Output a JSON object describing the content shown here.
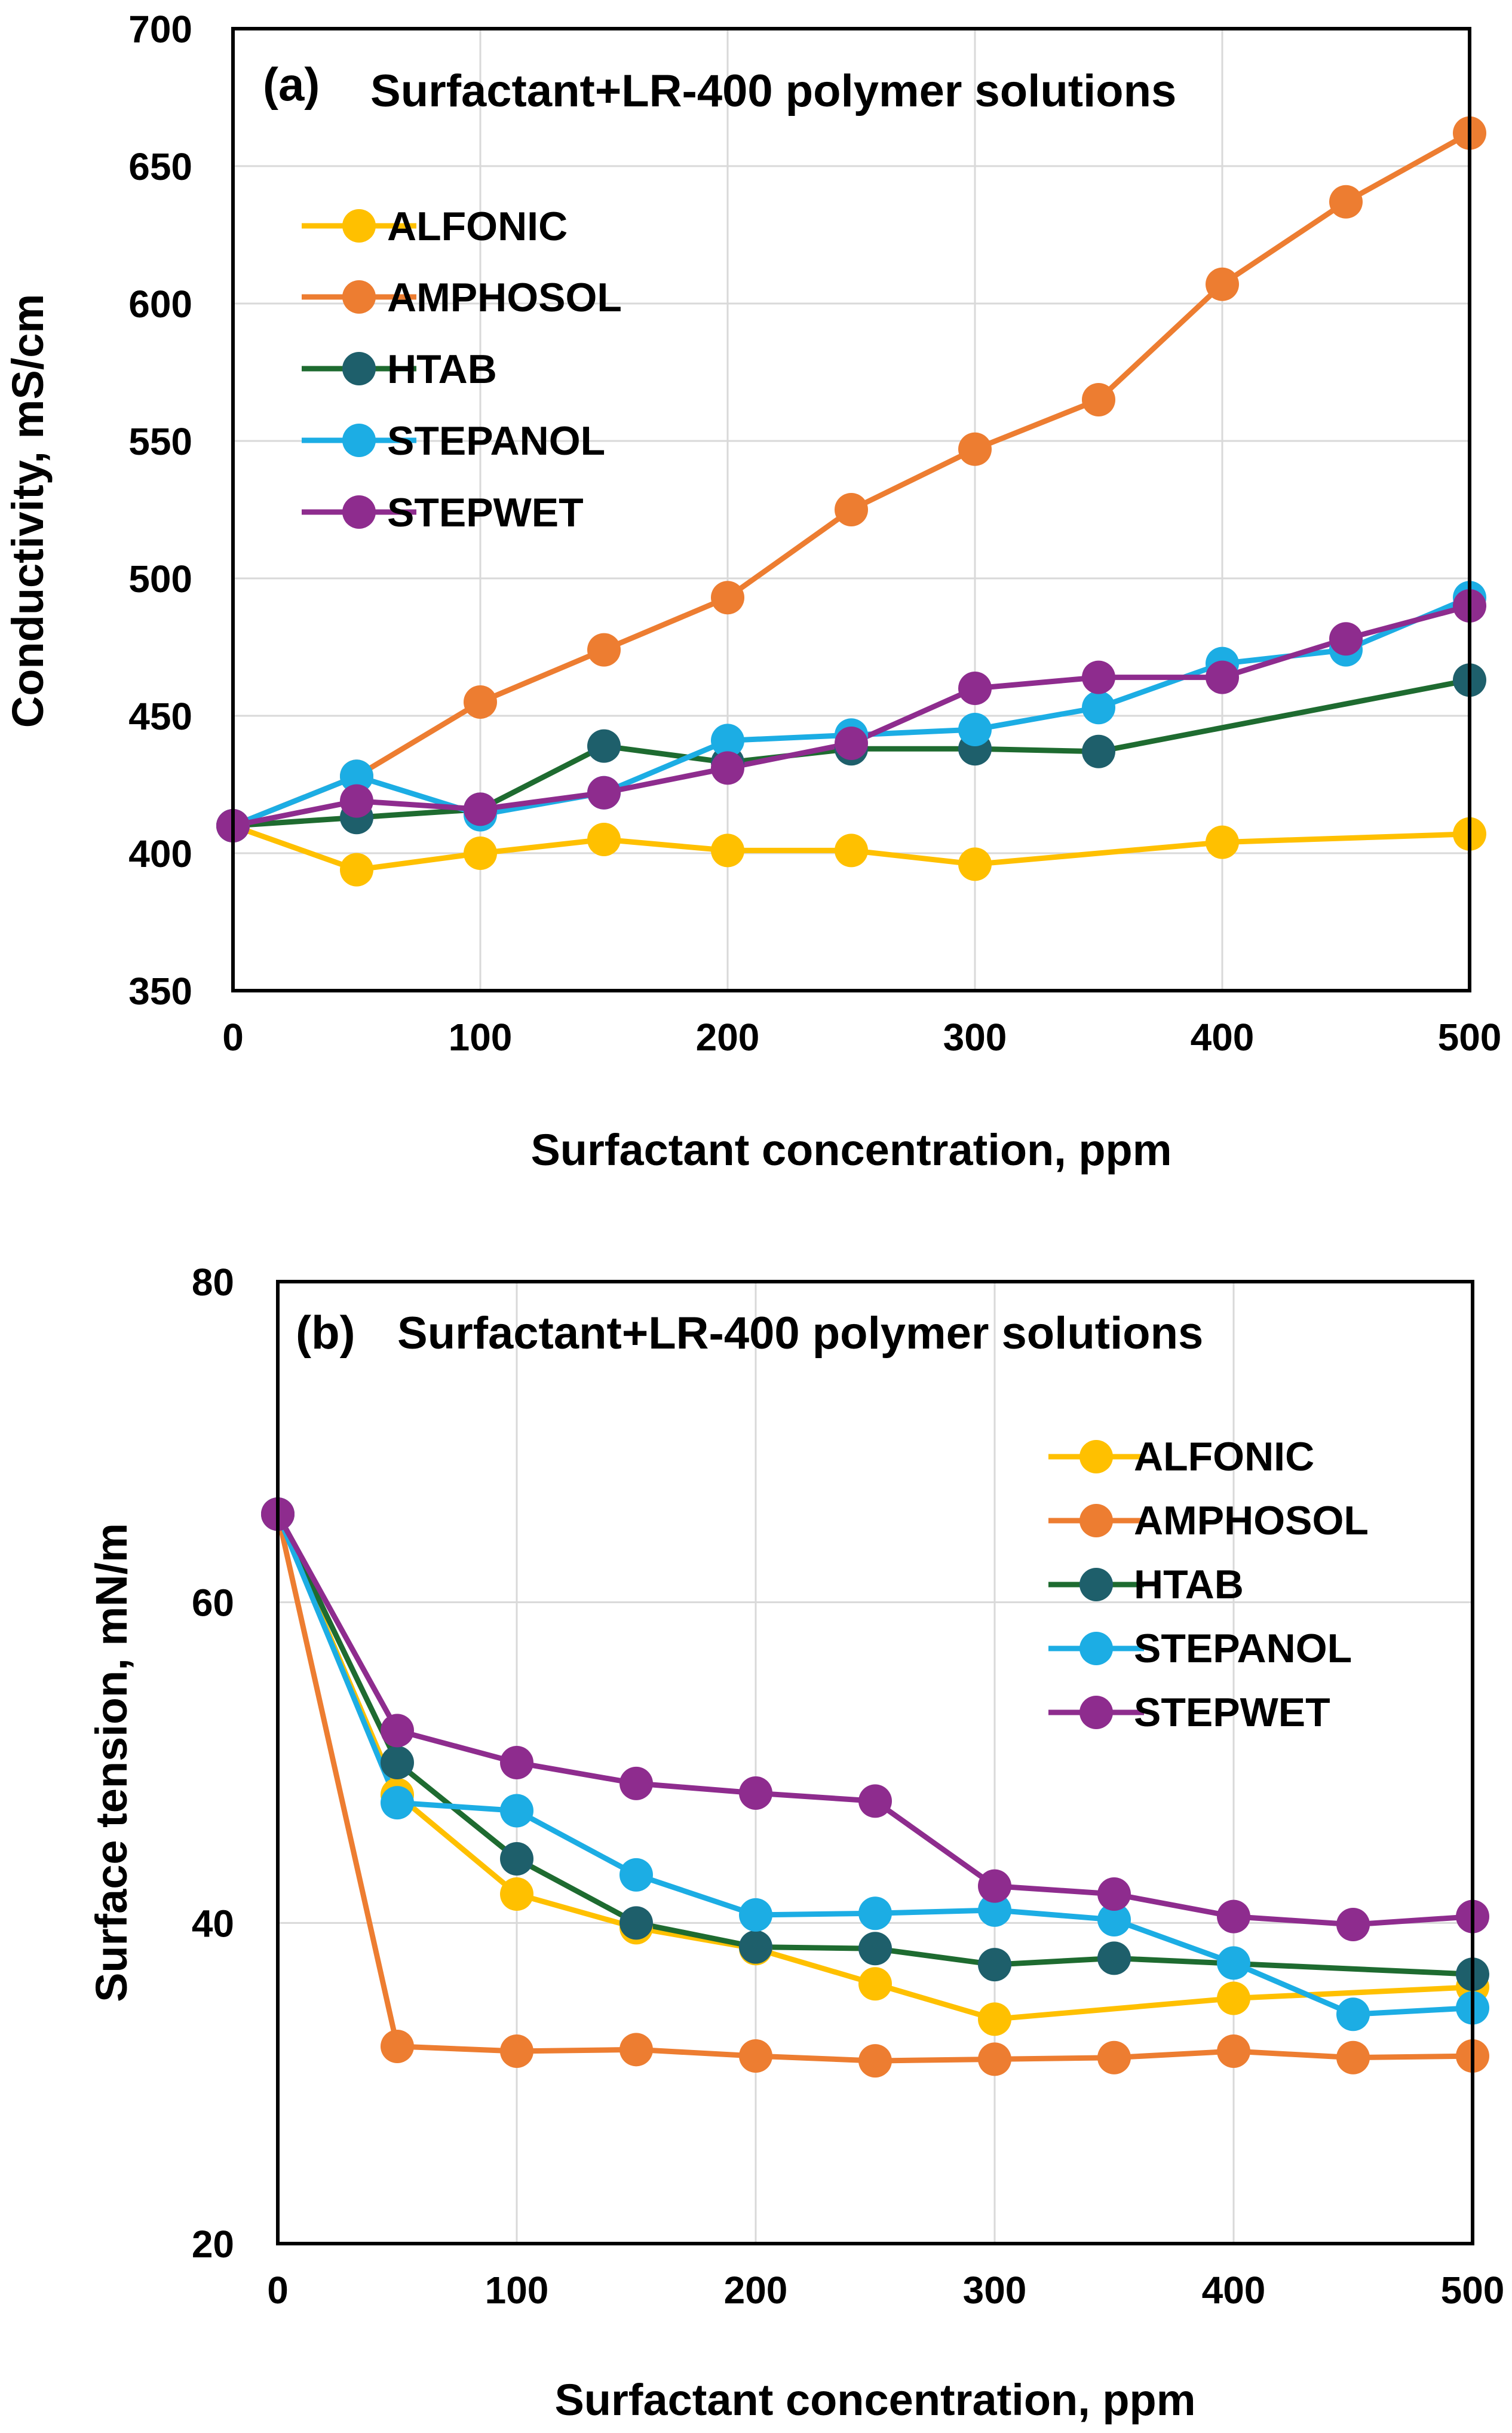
{
  "chart_data": [
    {
      "type": "line",
      "panel_label": "(a)",
      "title": "Surfactant+LR-400 polymer solutions",
      "xlabel": "Surfactant concentration, ppm",
      "ylabel": "Conductivity, mS/cm",
      "xlim": [
        0,
        500
      ],
      "ylim": [
        350,
        700
      ],
      "xticks": [
        "0",
        "100",
        "200",
        "300",
        "400",
        "500"
      ],
      "yticks": [
        "350",
        "400",
        "450",
        "500",
        "550",
        "600",
        "650",
        "700"
      ],
      "grid": true,
      "legend_position": "top-left",
      "series": [
        {
          "name": "ALFONIC",
          "color": "#FFC000",
          "x": [
            0,
            50,
            100,
            150,
            200,
            250,
            300,
            400,
            500
          ],
          "y": [
            410,
            394,
            400,
            405,
            401,
            401,
            396,
            404,
            407
          ]
        },
        {
          "name": "AMPHOSOL",
          "color": "#ED7D31",
          "x": [
            0,
            50,
            100,
            150,
            200,
            250,
            300,
            350,
            400,
            450,
            500
          ],
          "y": [
            410,
            428,
            455,
            474,
            493,
            525,
            547,
            565,
            607,
            637,
            662
          ]
        },
        {
          "name": "HTAB",
          "color": "#1E6B30",
          "x": [
            0,
            50,
            100,
            150,
            200,
            250,
            300,
            350,
            500
          ],
          "y": [
            410,
            413,
            416,
            439,
            433,
            438,
            438,
            437,
            463
          ]
        },
        {
          "name": "STEPANOL",
          "color": "#1CADE4",
          "x": [
            0,
            50,
            100,
            150,
            200,
            250,
            300,
            350,
            400,
            450,
            500
          ],
          "y": [
            410,
            428,
            414,
            422,
            441,
            443,
            445,
            453,
            469,
            474,
            493
          ]
        },
        {
          "name": "STEPWET",
          "color": "#8E2C8E",
          "x": [
            0,
            50,
            100,
            150,
            200,
            250,
            300,
            350,
            400,
            450,
            500
          ],
          "y": [
            410,
            419,
            416,
            422,
            431,
            440,
            460,
            464,
            464,
            478,
            490
          ]
        }
      ]
    },
    {
      "type": "line",
      "panel_label": "(b)",
      "title": "Surfactant+LR-400 polymer solutions",
      "xlabel": "Surfactant concentration, ppm",
      "ylabel": "Surface tension, mN/m",
      "xlim": [
        0,
        500
      ],
      "ylim": [
        20,
        80
      ],
      "xticks": [
        "0",
        "100",
        "200",
        "300",
        "400",
        "500"
      ],
      "yticks": [
        "20",
        "40",
        "60",
        "80"
      ],
      "grid": true,
      "legend_position": "top-right",
      "series": [
        {
          "name": "ALFONIC",
          "color": "#FFC000",
          "x": [
            0,
            50,
            100,
            150,
            200,
            250,
            300,
            400,
            500
          ],
          "y": [
            65.5,
            48,
            41.8,
            39.7,
            38.4,
            36.2,
            34,
            35.3,
            36
          ]
        },
        {
          "name": "AMPHOSOL",
          "color": "#ED7D31",
          "x": [
            0,
            50,
            100,
            150,
            200,
            250,
            300,
            350,
            400,
            450,
            500
          ],
          "y": [
            65.5,
            32.3,
            32,
            32.1,
            31.7,
            31.4,
            31.5,
            31.6,
            32,
            31.6,
            31.7
          ]
        },
        {
          "name": "HTAB",
          "color": "#1E6B30",
          "x": [
            0,
            50,
            100,
            150,
            200,
            250,
            300,
            350,
            500
          ],
          "y": [
            65.5,
            50,
            44,
            40,
            38.5,
            38.4,
            37.4,
            37.8,
            36.8
          ]
        },
        {
          "name": "STEPANOL",
          "color": "#1CADE4",
          "x": [
            0,
            50,
            100,
            150,
            200,
            250,
            300,
            350,
            400,
            450,
            500
          ],
          "y": [
            65.5,
            47.5,
            47,
            43,
            40.5,
            40.6,
            40.8,
            40.2,
            37.5,
            34.3,
            34.7
          ]
        },
        {
          "name": "STEPWET",
          "color": "#8E2C8E",
          "x": [
            0,
            50,
            100,
            150,
            200,
            250,
            300,
            350,
            400,
            450,
            500
          ],
          "y": [
            65.5,
            52,
            50,
            48.7,
            48.1,
            47.6,
            42.3,
            41.8,
            40.4,
            39.9,
            40.4
          ]
        }
      ]
    }
  ]
}
